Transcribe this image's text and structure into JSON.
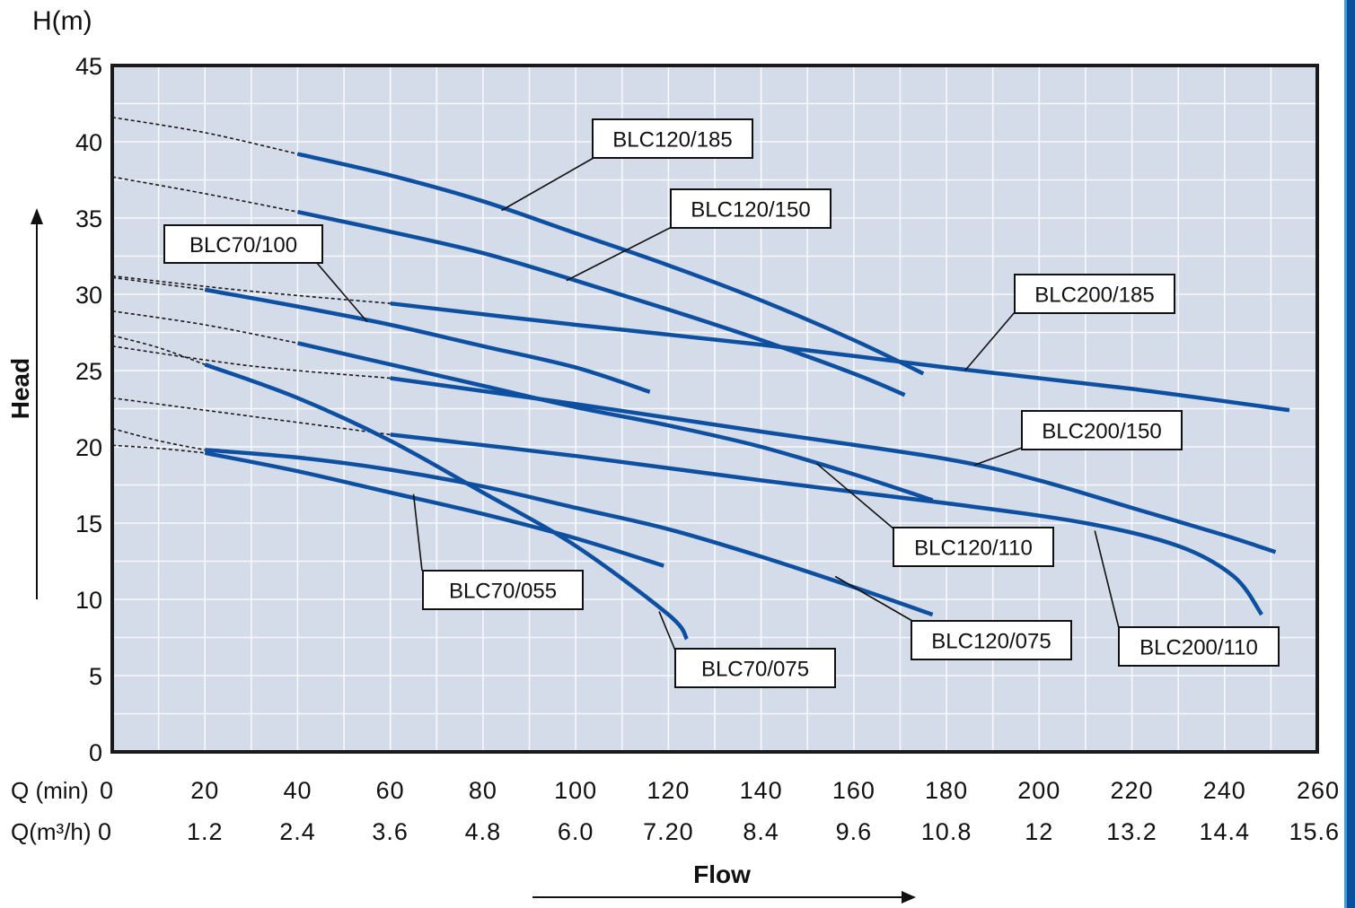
{
  "chart_data": {
    "type": "line",
    "title": "",
    "y_unit_label": "H(m)",
    "ylabel": "Head",
    "xlabel": "Flow",
    "x_row_labels": {
      "q_min": "Q (min)",
      "q_m3h": "Q(m³/h)"
    },
    "xlim": [
      0,
      260
    ],
    "ylim": [
      0,
      45
    ],
    "x_ticks": [
      0,
      20,
      40,
      60,
      80,
      100,
      120,
      140,
      160,
      180,
      200,
      220,
      240,
      260
    ],
    "x_tick_labels_min": [
      "0",
      "20",
      "40",
      "60",
      "80",
      "100",
      "120",
      "140",
      "160",
      "180",
      "200",
      "220",
      "240",
      "260"
    ],
    "x_tick_labels_m3h": [
      "0",
      "1.2",
      "2.4",
      "3.6",
      "4.8",
      "6.0",
      "7.20",
      "8.4",
      "9.6",
      "10.8",
      "12",
      "13.2",
      "14.4",
      "15.6"
    ],
    "y_ticks": [
      0,
      5,
      10,
      15,
      20,
      25,
      30,
      35,
      40,
      45
    ],
    "y_tick_labels": [
      "0",
      "5",
      "10",
      "15",
      "20",
      "25",
      "30",
      "35",
      "40",
      "45"
    ],
    "grid": true,
    "colors": {
      "plot_bg": "#d4dbe9",
      "grid": "#f7f9fc",
      "curve": "#0d4fa0",
      "border": "#1a1a1a"
    },
    "series": [
      {
        "name": "BLC120/185",
        "dashed": [
          [
            0,
            41.6
          ],
          [
            20,
            40.6
          ],
          [
            40,
            39.2
          ]
        ],
        "solid": [
          [
            40,
            39.2
          ],
          [
            60,
            37.8
          ],
          [
            80,
            36.1
          ],
          [
            100,
            34.0
          ],
          [
            120,
            31.9
          ],
          [
            140,
            29.6
          ],
          [
            160,
            27.0
          ],
          [
            175,
            24.8
          ]
        ]
      },
      {
        "name": "BLC120/150",
        "dashed": [
          [
            0,
            37.7
          ],
          [
            20,
            36.6
          ],
          [
            40,
            35.4
          ]
        ],
        "solid": [
          [
            40,
            35.4
          ],
          [
            60,
            34.1
          ],
          [
            80,
            32.7
          ],
          [
            100,
            30.9
          ],
          [
            120,
            29.0
          ],
          [
            140,
            27.0
          ],
          [
            160,
            24.8
          ],
          [
            171,
            23.4
          ]
        ]
      },
      {
        "name": "BLC70/100",
        "dashed": [
          [
            0,
            31.1
          ],
          [
            20,
            30.3
          ]
        ],
        "solid": [
          [
            20,
            30.3
          ],
          [
            40,
            29.2
          ],
          [
            60,
            28.0
          ],
          [
            80,
            26.6
          ],
          [
            100,
            25.2
          ],
          [
            116,
            23.6
          ]
        ]
      },
      {
        "name": "BLC200/185",
        "dashed": [
          [
            0,
            31.2
          ],
          [
            30,
            30.2
          ],
          [
            60,
            29.4
          ]
        ],
        "solid": [
          [
            60,
            29.4
          ],
          [
            100,
            28.0
          ],
          [
            140,
            26.7
          ],
          [
            180,
            25.2
          ],
          [
            220,
            23.8
          ],
          [
            254,
            22.4
          ]
        ]
      },
      {
        "name": "BLC120/110",
        "dashed": [
          [
            0,
            28.9
          ],
          [
            20,
            28.0
          ],
          [
            40,
            26.8
          ]
        ],
        "solid": [
          [
            40,
            26.8
          ],
          [
            60,
            25.4
          ],
          [
            80,
            24.0
          ],
          [
            100,
            22.6
          ],
          [
            120,
            21.4
          ],
          [
            140,
            20.0
          ],
          [
            160,
            18.2
          ],
          [
            177,
            16.5
          ]
        ]
      },
      {
        "name": "BLC200/150",
        "dashed": [
          [
            0,
            26.6
          ],
          [
            30,
            25.3
          ],
          [
            60,
            24.5
          ]
        ],
        "solid": [
          [
            60,
            24.5
          ],
          [
            100,
            22.8
          ],
          [
            140,
            21.0
          ],
          [
            180,
            19.2
          ],
          [
            200,
            17.8
          ],
          [
            220,
            16.0
          ],
          [
            240,
            14.2
          ],
          [
            251,
            13.1
          ]
        ]
      },
      {
        "name": "BLC70/075",
        "dashed": [
          [
            0,
            27.3
          ],
          [
            10,
            26.5
          ],
          [
            20,
            25.4
          ]
        ],
        "solid": [
          [
            20,
            25.4
          ],
          [
            40,
            23.2
          ],
          [
            60,
            20.4
          ],
          [
            80,
            17.0
          ],
          [
            100,
            13.5
          ],
          [
            120,
            9.0
          ],
          [
            124,
            7.4
          ]
        ]
      },
      {
        "name": "BLC200/110",
        "dashed": [
          [
            0,
            23.2
          ],
          [
            30,
            22.0
          ],
          [
            60,
            20.8
          ]
        ],
        "solid": [
          [
            60,
            20.8
          ],
          [
            100,
            19.4
          ],
          [
            140,
            17.8
          ],
          [
            180,
            16.3
          ],
          [
            210,
            15.0
          ],
          [
            230,
            13.5
          ],
          [
            242,
            11.5
          ],
          [
            248,
            9.0
          ]
        ]
      },
      {
        "name": "BLC120/075",
        "dashed": [
          [
            0,
            21.2
          ],
          [
            10,
            20.4
          ],
          [
            20,
            19.8
          ]
        ],
        "solid": [
          [
            20,
            19.8
          ],
          [
            40,
            19.3
          ],
          [
            60,
            18.5
          ],
          [
            80,
            17.4
          ],
          [
            100,
            16.0
          ],
          [
            120,
            14.6
          ],
          [
            140,
            12.8
          ],
          [
            160,
            10.8
          ],
          [
            177,
            9.0
          ]
        ]
      },
      {
        "name": "BLC70/055",
        "dashed": [
          [
            0,
            20.1
          ],
          [
            10,
            19.9
          ],
          [
            20,
            19.6
          ]
        ],
        "solid": [
          [
            20,
            19.6
          ],
          [
            40,
            18.4
          ],
          [
            60,
            17.0
          ],
          [
            80,
            15.6
          ],
          [
            100,
            14.0
          ],
          [
            119,
            12.2
          ]
        ]
      }
    ],
    "callouts": [
      {
        "name": "BLC120/185",
        "anchor": [
          84,
          35.5
        ]
      },
      {
        "name": "BLC120/150",
        "anchor": [
          98,
          30.9
        ]
      },
      {
        "name": "BLC70/100",
        "anchor": [
          55,
          28.2
        ]
      },
      {
        "name": "BLC200/185",
        "anchor": [
          184,
          25.0
        ]
      },
      {
        "name": "BLC200/150",
        "anchor": [
          186,
          18.8
        ]
      },
      {
        "name": "BLC120/110",
        "anchor": [
          152,
          18.9
        ]
      },
      {
        "name": "BLC200/110",
        "anchor": [
          212,
          14.5
        ]
      },
      {
        "name": "BLC70/055",
        "anchor": [
          65,
          16.9
        ]
      },
      {
        "name": "BLC120/075",
        "anchor": [
          156,
          11.5
        ]
      },
      {
        "name": "BLC70/075",
        "anchor": [
          118,
          9.2
        ]
      }
    ]
  }
}
